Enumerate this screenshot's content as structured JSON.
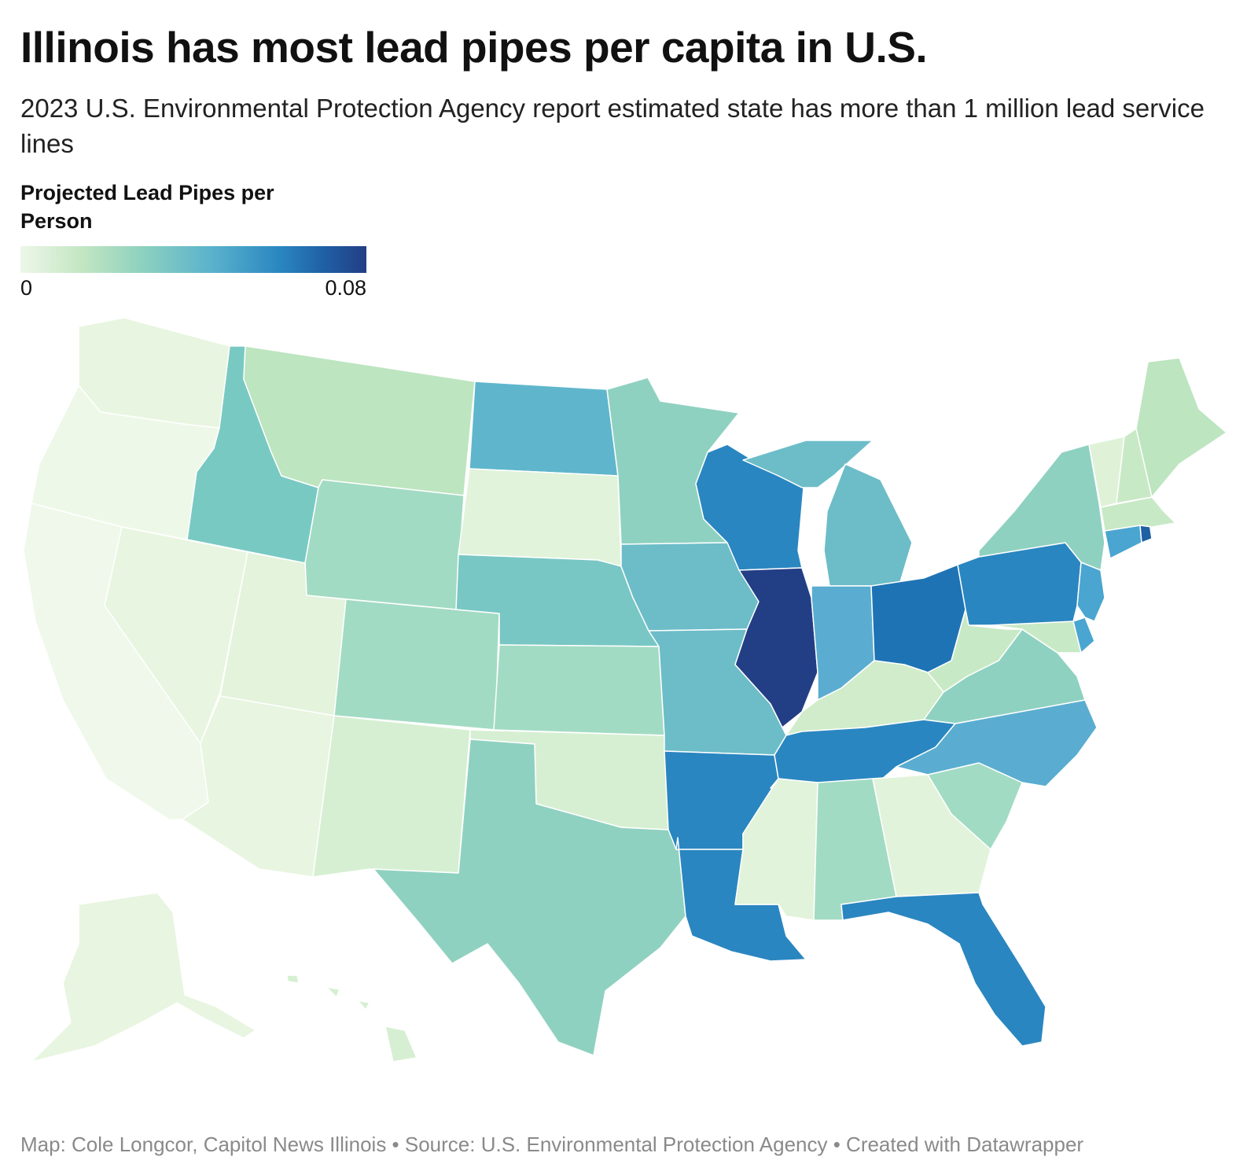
{
  "title": "Illinois has most lead pipes per capita in U.S.",
  "subtitle": "2023 U.S. Environmental Protection Agency report estimated state has more than 1 million lead service lines",
  "legend": {
    "title": "Projected Lead Pipes per Person",
    "min_label": "0",
    "max_label": "0.08",
    "scale_colors": [
      "#eef7e8",
      "#c2e6c2",
      "#8ed1bf",
      "#5ab3cc",
      "#2a86c0",
      "#1f5fa4",
      "#223e85"
    ]
  },
  "footer": "Map: Cole Longcor, Capitol News Illinois • Source: U.S. Environmental Protection Agency • Created with Datawrapper",
  "states": [
    {
      "id": "WA",
      "color": "#e8f5e0"
    },
    {
      "id": "OR",
      "color": "#eef8e8"
    },
    {
      "id": "CA",
      "color": "#eff8ea"
    },
    {
      "id": "ID",
      "color": "#79c9c3"
    },
    {
      "id": "NV",
      "color": "#e8f5e0"
    },
    {
      "id": "MT",
      "color": "#bde5c0"
    },
    {
      "id": "WY",
      "color": "#a2dbc3"
    },
    {
      "id": "UT",
      "color": "#e3f3dc"
    },
    {
      "id": "AZ",
      "color": "#e8f5e0"
    },
    {
      "id": "CO",
      "color": "#a2dbc3"
    },
    {
      "id": "NM",
      "color": "#d6efd2"
    },
    {
      "id": "ND",
      "color": "#5fb6cc"
    },
    {
      "id": "SD",
      "color": "#e1f3da"
    },
    {
      "id": "NE",
      "color": "#78c7c4"
    },
    {
      "id": "KS",
      "color": "#a2dbc3"
    },
    {
      "id": "OK",
      "color": "#d6efd2"
    },
    {
      "id": "TX",
      "color": "#8fd1c0"
    },
    {
      "id": "MN",
      "color": "#8fd1c0"
    },
    {
      "id": "IA",
      "color": "#6cbdc8"
    },
    {
      "id": "MO",
      "color": "#6cbdc8"
    },
    {
      "id": "AR",
      "color": "#2a86c0"
    },
    {
      "id": "LA",
      "color": "#2a86c0"
    },
    {
      "id": "WI",
      "color": "#2a86c0"
    },
    {
      "id": "IL",
      "color": "#223e85"
    },
    {
      "id": "MI",
      "color": "#6cbdc8"
    },
    {
      "id": "IN",
      "color": "#5aadd0"
    },
    {
      "id": "OH",
      "color": "#1e73b5"
    },
    {
      "id": "KY",
      "color": "#d0ecca"
    },
    {
      "id": "TN",
      "color": "#2a86c0"
    },
    {
      "id": "MS",
      "color": "#e1f3da"
    },
    {
      "id": "AL",
      "color": "#a2dbc3"
    },
    {
      "id": "GA",
      "color": "#e1f3da"
    },
    {
      "id": "FL",
      "color": "#2a86c0"
    },
    {
      "id": "SC",
      "color": "#a2dbc3"
    },
    {
      "id": "NC",
      "color": "#5aadd0"
    },
    {
      "id": "VA",
      "color": "#8fd1c0"
    },
    {
      "id": "WV",
      "color": "#c8e9c5"
    },
    {
      "id": "PA",
      "color": "#2a86c0"
    },
    {
      "id": "NY",
      "color": "#8fd1c0"
    },
    {
      "id": "NJ",
      "color": "#4aa5d0"
    },
    {
      "id": "DE",
      "color": "#4aa5d0"
    },
    {
      "id": "MD",
      "color": "#c8e9c5"
    },
    {
      "id": "CT",
      "color": "#4aa5d0"
    },
    {
      "id": "RI",
      "color": "#1f5fa4"
    },
    {
      "id": "MA",
      "color": "#c8e9c5"
    },
    {
      "id": "VT",
      "color": "#dff2d8"
    },
    {
      "id": "NH",
      "color": "#c8e9c5"
    },
    {
      "id": "ME",
      "color": "#bde5c0"
    },
    {
      "id": "AK",
      "color": "#e8f5e0"
    },
    {
      "id": "HI",
      "color": "#d6efd2"
    }
  ]
}
